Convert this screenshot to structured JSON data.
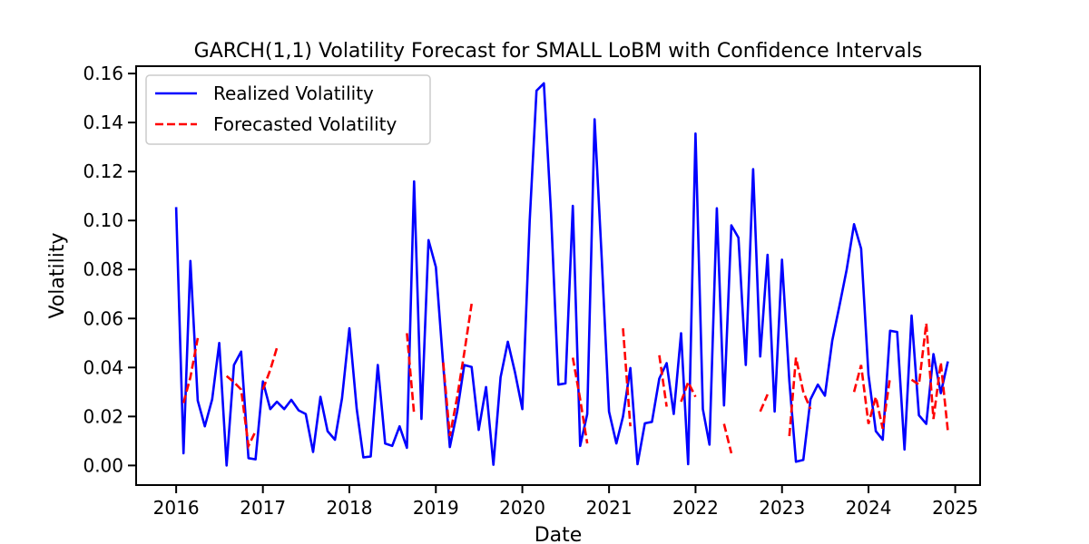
{
  "chart_data": {
    "type": "line",
    "title": "GARCH(1,1) Volatility Forecast for SMALL LoBM with Confidence Intervals",
    "xlabel": "Date",
    "ylabel": "Volatility",
    "xlim": [
      "2015-07-16",
      "2025-04-16"
    ],
    "ylim": [
      -0.008,
      0.163
    ],
    "x_ticks": [
      "2016",
      "2017",
      "2018",
      "2019",
      "2020",
      "2021",
      "2022",
      "2023",
      "2024",
      "2025"
    ],
    "y_ticks": [
      "0.00",
      "0.02",
      "0.04",
      "0.06",
      "0.08",
      "0.10",
      "0.12",
      "0.14",
      "0.16"
    ],
    "legend": {
      "position": "top-left"
    },
    "grid": false,
    "series": [
      {
        "name": "Realized Volatility",
        "color": "#0000ff",
        "style": "solid",
        "points": [
          [
            "2016-01-01",
            0.1055
          ],
          [
            "2016-02-01",
            0.005
          ],
          [
            "2016-03-01",
            0.0835
          ],
          [
            "2016-04-01",
            0.0265
          ],
          [
            "2016-05-01",
            0.016
          ],
          [
            "2016-06-01",
            0.027
          ],
          [
            "2016-07-01",
            0.05
          ],
          [
            "2016-08-01",
            0.0
          ],
          [
            "2016-09-01",
            0.041
          ],
          [
            "2016-10-01",
            0.0465
          ],
          [
            "2016-11-01",
            0.003
          ],
          [
            "2016-12-01",
            0.0025
          ],
          [
            "2017-01-01",
            0.0343
          ],
          [
            "2017-02-01",
            0.023
          ],
          [
            "2017-03-01",
            0.026
          ],
          [
            "2017-04-01",
            0.023
          ],
          [
            "2017-05-01",
            0.0268
          ],
          [
            "2017-06-01",
            0.0225
          ],
          [
            "2017-07-01",
            0.021
          ],
          [
            "2017-08-01",
            0.0055
          ],
          [
            "2017-09-01",
            0.028
          ],
          [
            "2017-10-01",
            0.014
          ],
          [
            "2017-11-01",
            0.0105
          ],
          [
            "2017-12-01",
            0.0275
          ],
          [
            "2018-01-01",
            0.056
          ],
          [
            "2018-02-01",
            0.023
          ],
          [
            "2018-03-01",
            0.0033
          ],
          [
            "2018-04-01",
            0.0037
          ],
          [
            "2018-05-01",
            0.041
          ],
          [
            "2018-06-01",
            0.009
          ],
          [
            "2018-07-01",
            0.008
          ],
          [
            "2018-08-01",
            0.016
          ],
          [
            "2018-09-01",
            0.0072
          ],
          [
            "2018-10-01",
            0.116
          ],
          [
            "2018-11-01",
            0.019
          ],
          [
            "2018-12-01",
            0.092
          ],
          [
            "2019-01-01",
            0.081
          ],
          [
            "2019-02-01",
            0.041
          ],
          [
            "2019-03-01",
            0.0075
          ],
          [
            "2019-04-01",
            0.022
          ],
          [
            "2019-05-01",
            0.041
          ],
          [
            "2019-06-01",
            0.0402
          ],
          [
            "2019-07-01",
            0.0145
          ],
          [
            "2019-08-01",
            0.032
          ],
          [
            "2019-09-01",
            0.0003
          ],
          [
            "2019-10-01",
            0.036
          ],
          [
            "2019-11-01",
            0.0505
          ],
          [
            "2019-12-01",
            0.038
          ],
          [
            "2020-01-01",
            0.023
          ],
          [
            "2020-02-01",
            0.1
          ],
          [
            "2020-03-01",
            0.153
          ],
          [
            "2020-04-01",
            0.156
          ],
          [
            "2020-05-01",
            0.103
          ],
          [
            "2020-06-01",
            0.033
          ],
          [
            "2020-07-01",
            0.0335
          ],
          [
            "2020-08-01",
            0.106
          ],
          [
            "2020-09-01",
            0.008
          ],
          [
            "2020-10-01",
            0.021
          ],
          [
            "2020-11-01",
            0.1413
          ],
          [
            "2020-12-01",
            0.085
          ],
          [
            "2021-01-01",
            0.022
          ],
          [
            "2021-02-01",
            0.009
          ],
          [
            "2021-03-01",
            0.02
          ],
          [
            "2021-04-01",
            0.0398
          ],
          [
            "2021-05-01",
            0.0005
          ],
          [
            "2021-06-01",
            0.0172
          ],
          [
            "2021-07-01",
            0.0178
          ],
          [
            "2021-08-01",
            0.0355
          ],
          [
            "2021-09-01",
            0.0418
          ],
          [
            "2021-10-01",
            0.021
          ],
          [
            "2021-11-01",
            0.054
          ],
          [
            "2021-12-01",
            0.0005
          ],
          [
            "2022-01-01",
            0.1355
          ],
          [
            "2022-02-01",
            0.023
          ],
          [
            "2022-03-01",
            0.0085
          ],
          [
            "2022-04-01",
            0.105
          ],
          [
            "2022-05-01",
            0.0245
          ],
          [
            "2022-06-01",
            0.098
          ],
          [
            "2022-07-01",
            0.093
          ],
          [
            "2022-08-01",
            0.041
          ],
          [
            "2022-09-01",
            0.121
          ],
          [
            "2022-10-01",
            0.0445
          ],
          [
            "2022-11-01",
            0.086
          ],
          [
            "2022-12-01",
            0.022
          ],
          [
            "2023-01-01",
            0.084
          ],
          [
            "2023-02-01",
            0.0345
          ],
          [
            "2023-03-01",
            0.0015
          ],
          [
            "2023-04-01",
            0.0023
          ],
          [
            "2023-05-01",
            0.027
          ],
          [
            "2023-06-01",
            0.033
          ],
          [
            "2023-07-01",
            0.0285
          ],
          [
            "2023-08-01",
            0.051
          ],
          [
            "2023-09-01",
            0.0655
          ],
          [
            "2023-10-01",
            0.08
          ],
          [
            "2023-11-01",
            0.0985
          ],
          [
            "2023-12-01",
            0.0885
          ],
          [
            "2024-01-01",
            0.037
          ],
          [
            "2024-02-01",
            0.014
          ],
          [
            "2024-03-01",
            0.0105
          ],
          [
            "2024-04-01",
            0.055
          ],
          [
            "2024-05-01",
            0.0545
          ],
          [
            "2024-06-01",
            0.0065
          ],
          [
            "2024-07-01",
            0.0612
          ],
          [
            "2024-08-01",
            0.0205
          ],
          [
            "2024-09-01",
            0.017
          ],
          [
            "2024-10-01",
            0.0455
          ],
          [
            "2024-11-01",
            0.0295
          ],
          [
            "2024-12-01",
            0.0425
          ]
        ]
      },
      {
        "name": "Forecasted Volatility",
        "color": "#ff0000",
        "style": "dashed",
        "segments": [
          [
            [
              "2016-02-01",
              0.0255
            ],
            [
              "2016-03-01",
              0.036
            ],
            [
              "2016-04-01",
              0.052
            ]
          ],
          [
            [
              "2016-08-01",
              0.0365
            ],
            [
              "2016-09-01",
              0.034
            ],
            [
              "2016-10-01",
              0.031
            ],
            [
              "2016-11-01",
              0.008
            ],
            [
              "2016-12-01",
              0.014
            ]
          ],
          [
            [
              "2017-01-01",
              0.031
            ],
            [
              "2017-02-01",
              0.039
            ],
            [
              "2017-03-01",
              0.048
            ]
          ],
          [
            [
              "2018-09-01",
              0.054
            ],
            [
              "2018-10-01",
              0.021
            ]
          ],
          [
            [
              "2019-02-01",
              0.042
            ],
            [
              "2019-03-01",
              0.012
            ],
            [
              "2019-04-01",
              0.028
            ],
            [
              "2019-05-01",
              0.046
            ],
            [
              "2019-06-01",
              0.066
            ]
          ],
          [
            [
              "2020-08-01",
              0.044
            ],
            [
              "2020-09-01",
              0.027
            ],
            [
              "2020-10-01",
              0.009
            ]
          ],
          [
            [
              "2021-03-01",
              0.056
            ],
            [
              "2021-04-01",
              0.016
            ]
          ],
          [
            [
              "2021-08-01",
              0.045
            ],
            [
              "2021-09-01",
              0.024
            ]
          ],
          [
            [
              "2021-11-01",
              0.026
            ],
            [
              "2021-12-01",
              0.034
            ],
            [
              "2022-01-01",
              0.028
            ]
          ],
          [
            [
              "2022-05-01",
              0.017
            ],
            [
              "2022-06-01",
              0.005
            ]
          ],
          [
            [
              "2022-10-01",
              0.022
            ],
            [
              "2022-11-01",
              0.029
            ]
          ],
          [
            [
              "2023-02-01",
              0.012
            ],
            [
              "2023-03-01",
              0.044
            ],
            [
              "2023-04-01",
              0.03
            ],
            [
              "2023-05-01",
              0.023
            ]
          ],
          [
            [
              "2023-11-01",
              0.03
            ],
            [
              "2023-12-01",
              0.041
            ],
            [
              "2024-01-01",
              0.017
            ],
            [
              "2024-02-01",
              0.028
            ],
            [
              "2024-03-01",
              0.015
            ],
            [
              "2024-04-01",
              0.036
            ]
          ],
          [
            [
              "2024-07-01",
              0.035
            ],
            [
              "2024-08-01",
              0.033
            ],
            [
              "2024-09-01",
              0.058
            ],
            [
              "2024-10-01",
              0.019
            ],
            [
              "2024-11-01",
              0.042
            ],
            [
              "2024-12-01",
              0.014
            ]
          ]
        ]
      }
    ]
  }
}
